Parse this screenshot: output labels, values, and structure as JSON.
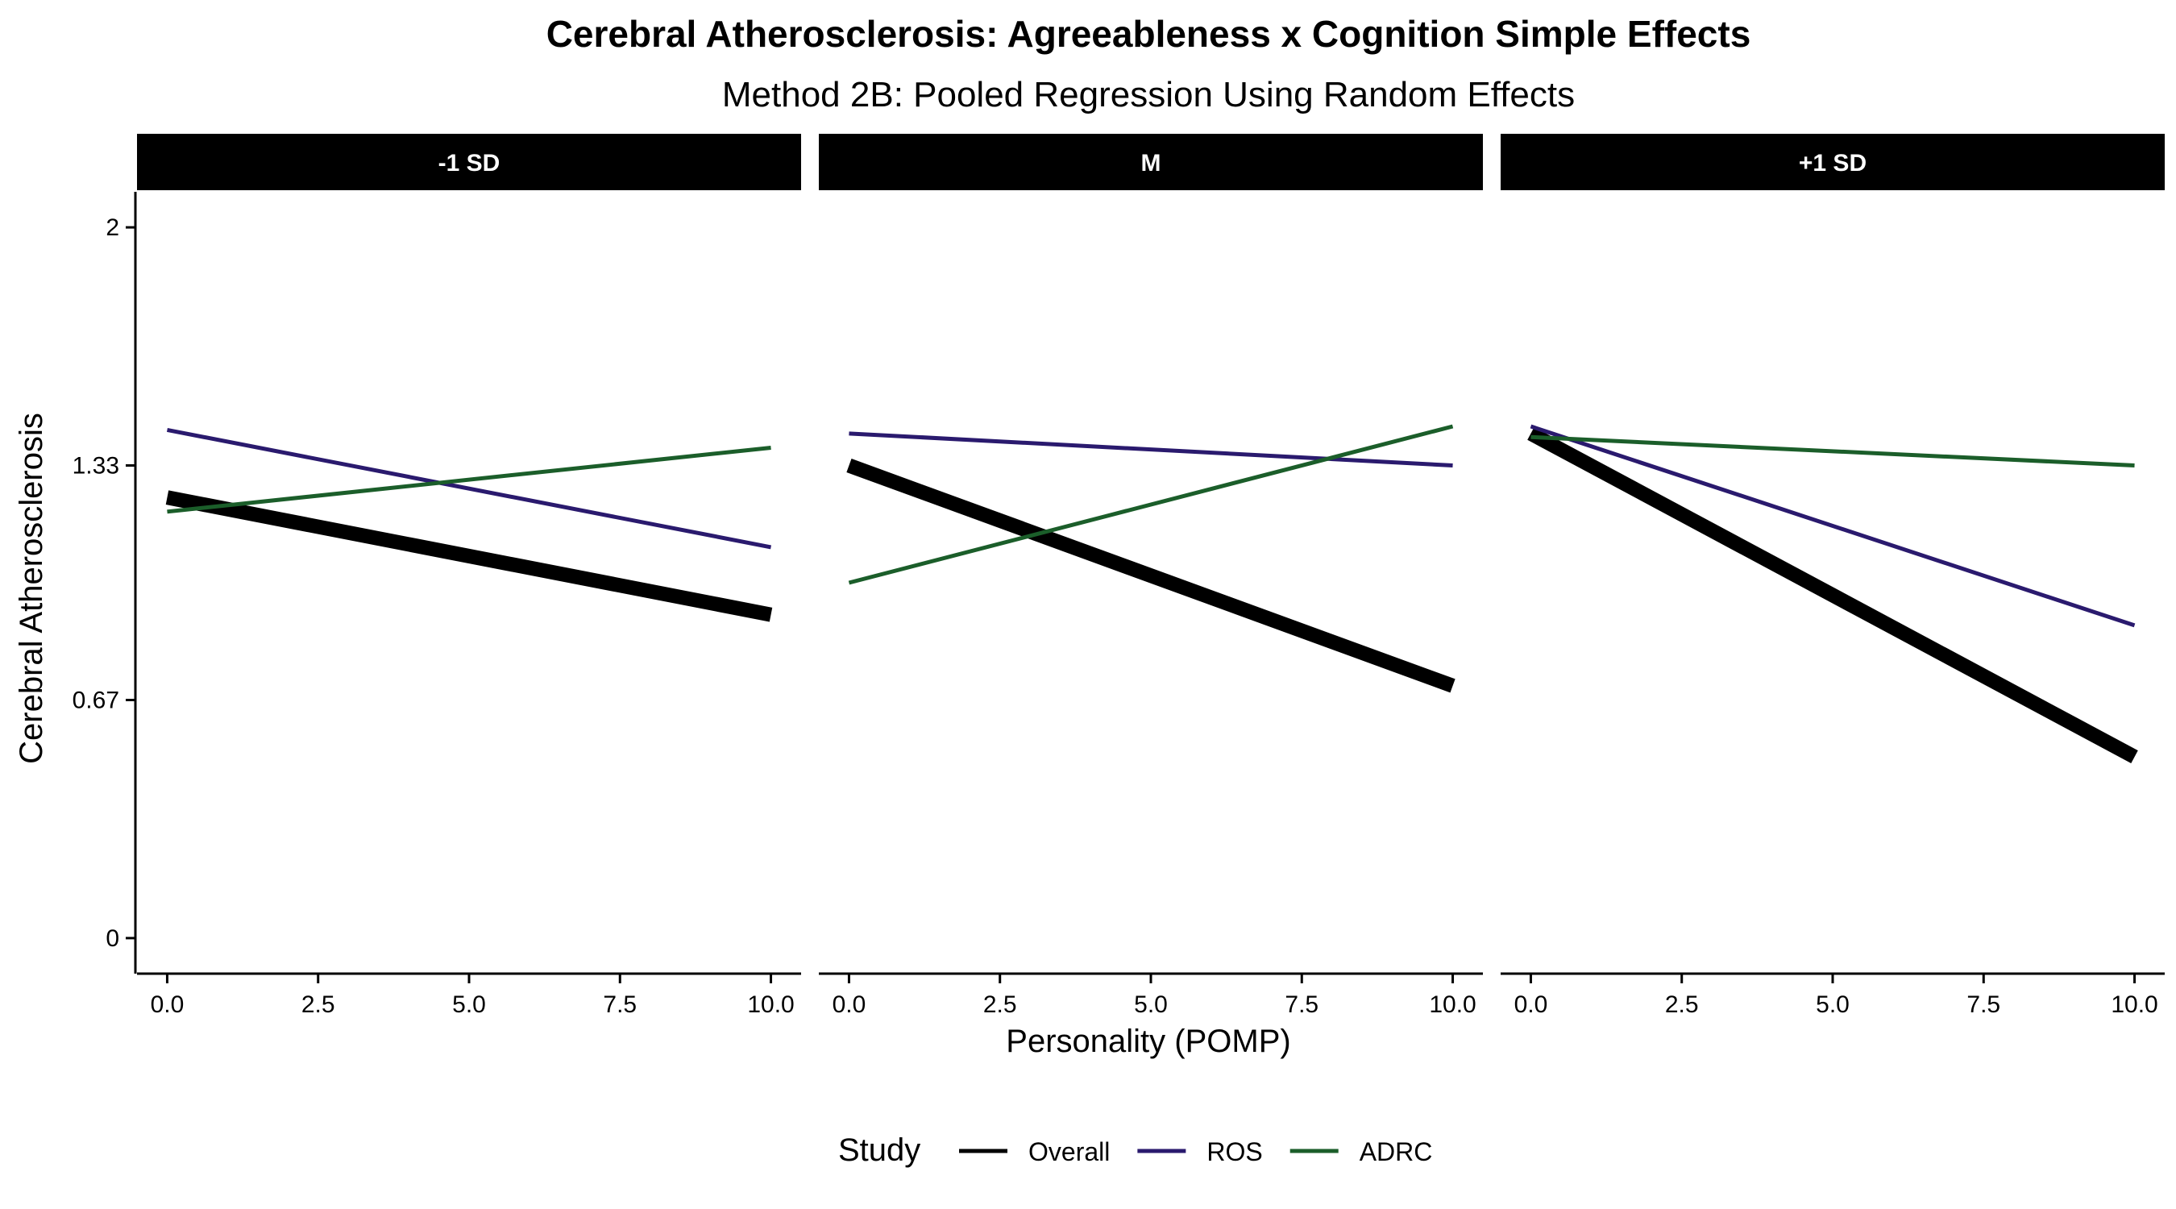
{
  "chart_data": {
    "type": "line",
    "title": "Cerebral Atherosclerosis: Agreeableness x Cognition Simple Effects",
    "subtitle": "Method 2B: Pooled Regression Using Random Effects",
    "xlabel": "Personality (POMP)",
    "ylabel": "Cerebral Atherosclerosis",
    "xlim": [
      -0.5,
      10.5
    ],
    "ylim": [
      -0.1,
      2.1
    ],
    "x_ticks": [
      0,
      2.5,
      5,
      7.5,
      10
    ],
    "x_tick_labels": [
      "0.0",
      "2.5",
      "5.0",
      "7.5",
      "10.0"
    ],
    "y_ticks": [
      0,
      0.67,
      1.33,
      2
    ],
    "y_tick_labels": [
      "0",
      "0.67",
      "1.33",
      "2"
    ],
    "grid": false,
    "legend": {
      "title": "Study",
      "position": "bottom",
      "entries": [
        {
          "label": "Overall",
          "color": "#000000"
        },
        {
          "label": "ROS",
          "color": "#2a1a6e"
        },
        {
          "label": "ADRC",
          "color": "#1b5e2a"
        }
      ]
    },
    "panels": [
      {
        "label": "-1 SD",
        "series": [
          {
            "name": "Overall",
            "color": "#000000",
            "x": [
              0,
              10
            ],
            "y": [
              1.24,
              0.91
            ]
          },
          {
            "name": "ROS",
            "color": "#2a1a6e",
            "x": [
              0,
              10
            ],
            "y": [
              1.43,
              1.1
            ]
          },
          {
            "name": "ADRC",
            "color": "#1b5e2a",
            "x": [
              0,
              10
            ],
            "y": [
              1.2,
              1.38
            ]
          }
        ]
      },
      {
        "label": "M",
        "series": [
          {
            "name": "Overall",
            "color": "#000000",
            "x": [
              0,
              10
            ],
            "y": [
              1.33,
              0.71
            ]
          },
          {
            "name": "ROS",
            "color": "#2a1a6e",
            "x": [
              0,
              10
            ],
            "y": [
              1.42,
              1.33
            ]
          },
          {
            "name": "ADRC",
            "color": "#1b5e2a",
            "x": [
              0,
              10
            ],
            "y": [
              1.0,
              1.44
            ]
          }
        ]
      },
      {
        "label": "+1 SD",
        "series": [
          {
            "name": "Overall",
            "color": "#000000",
            "x": [
              0,
              10
            ],
            "y": [
              1.42,
              0.51
            ]
          },
          {
            "name": "ROS",
            "color": "#2a1a6e",
            "x": [
              0,
              10
            ],
            "y": [
              1.44,
              0.88
            ]
          },
          {
            "name": "ADRC",
            "color": "#1b5e2a",
            "x": [
              0,
              10
            ],
            "y": [
              1.41,
              1.33
            ]
          }
        ]
      }
    ]
  }
}
